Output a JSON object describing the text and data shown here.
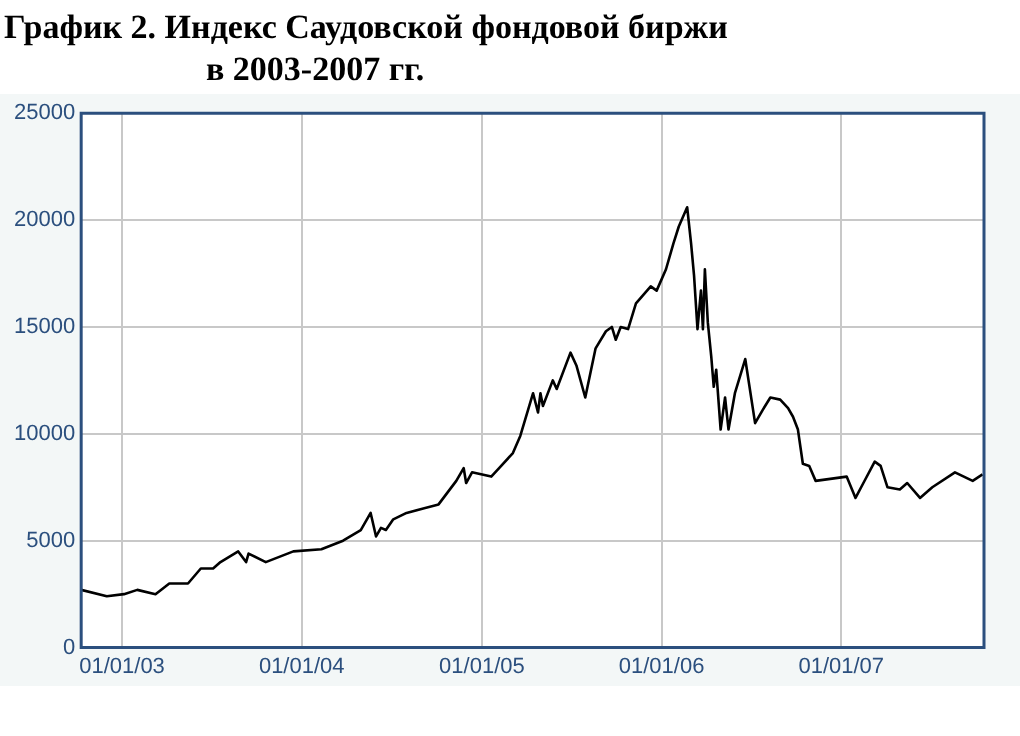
{
  "chart_data": {
    "type": "line",
    "title": "График 2. Индекс Саудовской фондовой биржи\nв 2003-2007 гг.",
    "x": [
      "2002-10-10",
      "2002-12-01",
      "2003-01-05",
      "2003-02-01",
      "2003-03-10",
      "2003-04-07",
      "2003-05-15",
      "2003-06-10",
      "2003-07-05",
      "2003-07-20",
      "2003-08-25",
      "2003-09-10",
      "2003-09-15",
      "2003-10-20",
      "2003-12-15",
      "2004-02-10",
      "2004-03-25",
      "2004-04-30",
      "2004-05-20",
      "2004-05-31",
      "2004-06-10",
      "2004-06-20",
      "2004-07-05",
      "2004-08-01",
      "2004-10-05",
      "2004-11-10",
      "2004-11-25",
      "2004-11-30",
      "2004-12-12",
      "2005-01-20",
      "2005-02-05",
      "2005-03-05",
      "2005-03-20",
      "2005-04-15",
      "2005-04-25",
      "2005-04-30",
      "2005-05-05",
      "2005-05-25",
      "2005-06-02",
      "2005-06-30",
      "2005-07-12",
      "2005-07-30",
      "2005-08-20",
      "2005-09-10",
      "2005-09-22",
      "2005-09-30",
      "2005-10-10",
      "2005-10-25",
      "2005-11-10",
      "2005-11-25",
      "2005-12-10",
      "2005-12-22",
      "2006-01-10",
      "2006-01-25",
      "2006-02-05",
      "2006-02-22",
      "2006-03-02",
      "2006-03-08",
      "2006-03-15",
      "2006-03-22",
      "2006-03-26",
      "2006-03-30",
      "2006-04-05",
      "2006-04-12",
      "2006-04-17",
      "2006-04-22",
      "2006-05-01",
      "2006-05-10",
      "2006-05-17",
      "2006-05-30",
      "2006-06-20",
      "2006-07-10",
      "2006-07-25",
      "2006-08-10",
      "2006-08-30",
      "2006-09-15",
      "2006-09-25",
      "2006-10-05",
      "2006-10-15",
      "2006-10-28",
      "2006-11-10",
      "2007-01-12",
      "2007-01-30",
      "2007-02-15",
      "2007-03-10",
      "2007-03-22",
      "2007-04-05",
      "2007-04-30",
      "2007-05-15",
      "2007-06-10",
      "2007-07-05",
      "2007-08-20",
      "2007-09-25",
      "2007-10-15"
    ],
    "values": [
      2700,
      2400,
      2500,
      2700,
      2500,
      3000,
      3000,
      3700,
      3700,
      4000,
      4500,
      4000,
      4400,
      4000,
      4500,
      4600,
      5000,
      5500,
      6300,
      5200,
      5600,
      5500,
      6000,
      6300,
      6700,
      7800,
      8400,
      7700,
      8200,
      8000,
      8400,
      9100,
      9900,
      11900,
      11000,
      11900,
      11300,
      12500,
      12100,
      13800,
      13200,
      11700,
      14000,
      14800,
      15000,
      14400,
      15000,
      14900,
      16100,
      16500,
      16900,
      16700,
      17700,
      18900,
      19700,
      20600,
      18900,
      17400,
      14900,
      16700,
      14900,
      17700,
      15200,
      13600,
      12200,
      13000,
      10200,
      11700,
      10200,
      11900,
      13500,
      10500,
      11100,
      11700,
      11600,
      11200,
      10800,
      10200,
      8600,
      8500,
      7800,
      8000,
      7000,
      7700,
      8700,
      8500,
      7500,
      7400,
      7700,
      7000,
      7500,
      8200,
      7800,
      8100
    ],
    "color": "#000000",
    "xlim": [
      "2002-10-10",
      "2007-10-18"
    ],
    "xticks": [
      {
        "value": "2003-01-01",
        "label": "01/01/03"
      },
      {
        "value": "2004-01-01",
        "label": "01/01/04"
      },
      {
        "value": "2005-01-01",
        "label": "01/01/05"
      },
      {
        "value": "2006-01-01",
        "label": "01/01/06"
      },
      {
        "value": "2007-01-01",
        "label": "01/01/07"
      }
    ],
    "ylim": [
      0,
      25000
    ],
    "yticks": [
      0,
      5000,
      10000,
      15000,
      20000,
      25000
    ],
    "grid": true,
    "legend": false,
    "marker": "none",
    "line_style": "solid"
  }
}
